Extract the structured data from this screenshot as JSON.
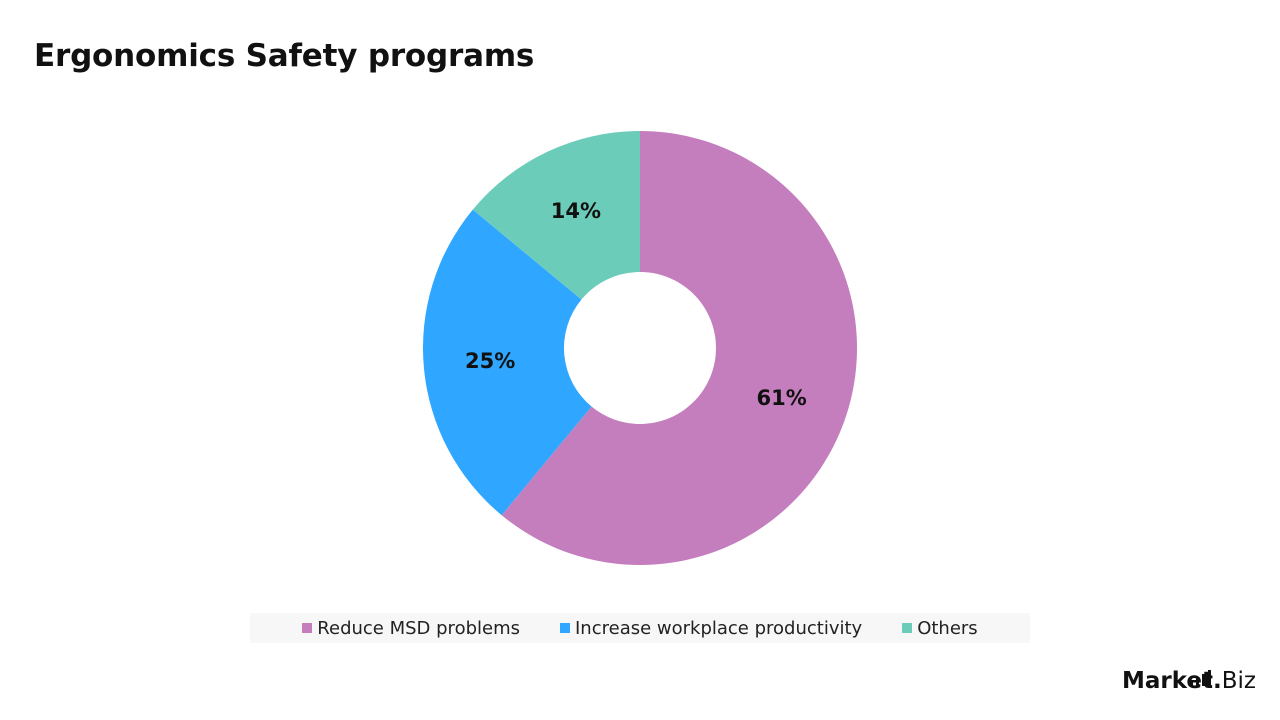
{
  "page": {
    "title": "Ergonomics Safety programs"
  },
  "brand": {
    "main": "Market",
    "dot": ".",
    "suffix": "Biz"
  },
  "chart_data": {
    "type": "pie",
    "donut": true,
    "title": "Ergonomics Safety programs",
    "categories": [
      "Reduce MSD problems",
      "Increase workplace productivity",
      "Others"
    ],
    "values": [
      61,
      25,
      14
    ],
    "labels": [
      "61%",
      "25%",
      "14%"
    ],
    "colors": [
      "#c47ebd",
      "#2fa6ff",
      "#6bcdb9"
    ],
    "legend": "bottom"
  }
}
